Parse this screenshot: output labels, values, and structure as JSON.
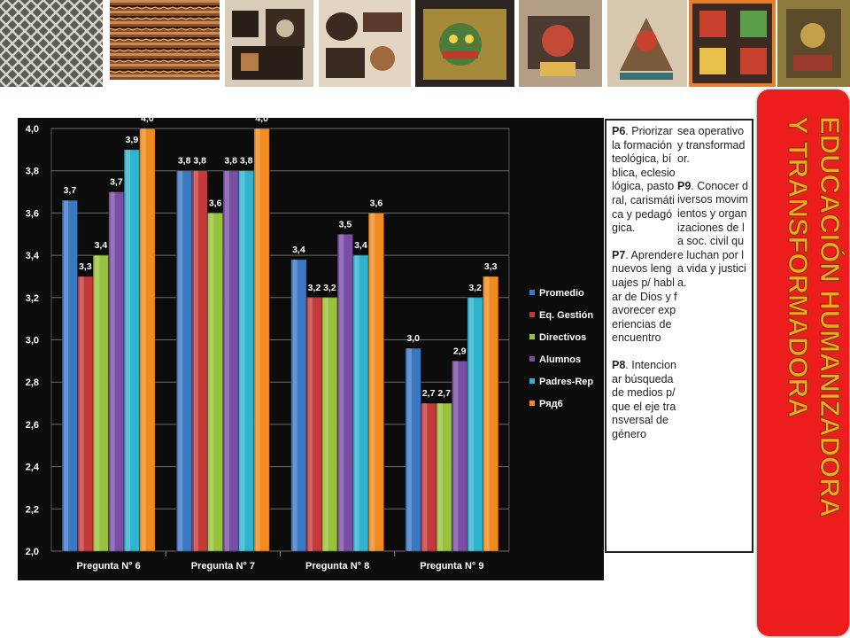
{
  "side_title": [
    "EDUCACIÓN HUMANIZADORA",
    "Y TRANSFORMADORA"
  ],
  "notes": {
    "p6": {
      "label": "P6",
      "text": ". Priorizar la formación teológica, bíblica, eclesiológica, pastoral, carismática y pedagógica."
    },
    "p7": {
      "label": "P7",
      "text": ". Aprender nuevos lenguajes p/ hablar de Dios y favorecer experiencias de encuentro"
    },
    "p8": {
      "label": "P8",
      "text": ". Intencionar búsqueda de medios p/ que el eje transversal de género"
    },
    "p6_cont": {
      "text": "sea operativo y transformador."
    },
    "p9": {
      "label": "P9",
      "text": ". Conocer diversos movimientos y organizaciones de la soc. civil que luchan por la vida y justicia."
    }
  },
  "colors": {
    "chart_bg": "#0c0c0c",
    "panel_red": "#ee1d1d",
    "title_fill": "#f6a623"
  },
  "chart_data": {
    "type": "bar",
    "categories": [
      "Pregunta N° 6",
      "Pregunta N° 7",
      "Pregunta N° 8",
      "Pregunta N° 9"
    ],
    "series": [
      {
        "name": "Promedio",
        "color": "#3b78c4",
        "values": [
          3.66,
          3.8,
          3.38,
          2.96
        ],
        "labels": [
          "3,7",
          "3,8",
          "3,4",
          "3,0"
        ]
      },
      {
        "name": "Eq. Gestión",
        "color": "#c43a3a",
        "values": [
          3.3,
          3.8,
          3.2,
          2.7
        ],
        "labels": [
          "3,3",
          "3,8",
          "3,2",
          "2,7"
        ]
      },
      {
        "name": "Directivos",
        "color": "#98c23c",
        "values": [
          3.4,
          3.6,
          3.2,
          2.7
        ],
        "labels": [
          "3,4",
          "3,6",
          "3,2",
          "2,7"
        ]
      },
      {
        "name": "Alumnos",
        "color": "#7a4ea5",
        "values": [
          3.7,
          3.8,
          3.5,
          2.9
        ],
        "labels": [
          "3,7",
          "3,8",
          "3,5",
          "2,9"
        ]
      },
      {
        "name": "Padres-Rep",
        "color": "#2eb4cf",
        "values": [
          3.9,
          3.8,
          3.4,
          3.2
        ],
        "labels": [
          "3,9",
          "3,8",
          "3,4",
          "3,2"
        ]
      },
      {
        "name": "Ряд6",
        "color": "#f18b1f",
        "values": [
          4.0,
          4.0,
          3.6,
          3.3
        ],
        "labels": [
          "4,0",
          "4,0",
          "3,6",
          "3,3"
        ]
      }
    ],
    "y_ticks": [
      "2,0",
      "2,2",
      "2,4",
      "2,6",
      "2,8",
      "3,0",
      "3,2",
      "3,4",
      "3,6",
      "3,8",
      "4,0"
    ],
    "ylim": [
      2.0,
      4.0
    ],
    "grid": true,
    "legend": "right"
  }
}
